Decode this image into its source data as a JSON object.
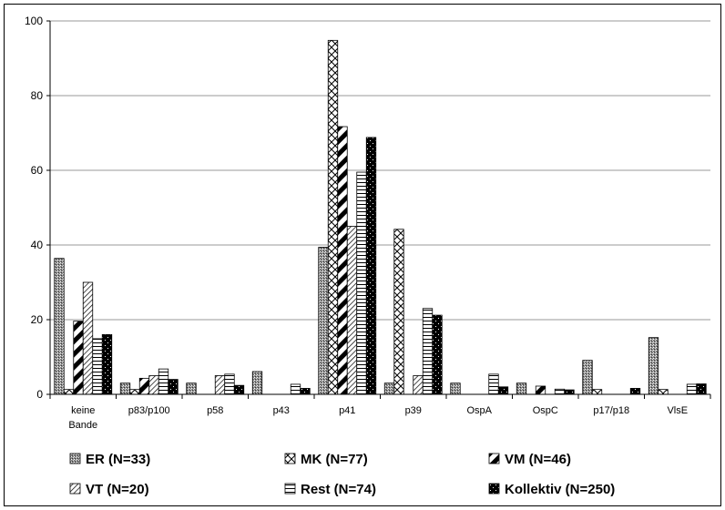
{
  "chart_data": {
    "type": "bar",
    "categories": [
      "keine Bande",
      "p83/p100",
      "p58",
      "p43",
      "p41",
      "p39",
      "OspA",
      "OspC",
      "p17/p18",
      "VlsE"
    ],
    "series": [
      {
        "name": "ER (N=33)",
        "values": [
          36.4,
          3.0,
          3.0,
          6.1,
          39.4,
          3.0,
          3.0,
          3.0,
          9.1,
          15.2
        ],
        "pattern": "er"
      },
      {
        "name": "MK (N=77)",
        "values": [
          1.3,
          1.3,
          0,
          0,
          94.8,
          44.2,
          0,
          0,
          1.3,
          1.3
        ],
        "pattern": "mk"
      },
      {
        "name": "VM (N=46)",
        "values": [
          19.6,
          4.3,
          0,
          0,
          71.7,
          0,
          0,
          2.2,
          0,
          0
        ],
        "pattern": "vm"
      },
      {
        "name": "VT (N=20)",
        "values": [
          30.0,
          5.0,
          5.0,
          0,
          45.0,
          5.0,
          0,
          0,
          0,
          0
        ],
        "pattern": "vt"
      },
      {
        "name": "Rest (N=74)",
        "values": [
          14.9,
          6.8,
          5.4,
          2.7,
          59.5,
          23.0,
          5.4,
          1.4,
          0,
          2.7
        ],
        "pattern": "rest"
      },
      {
        "name": "Kollektiv (N=250)",
        "values": [
          16.0,
          4.0,
          2.4,
          1.6,
          68.8,
          21.2,
          2.0,
          1.2,
          1.6,
          2.8
        ],
        "pattern": "koll"
      }
    ],
    "yticks": [
      "0",
      "20",
      "40",
      "60",
      "80",
      "100"
    ],
    "ylim": [
      0,
      100
    ],
    "title": "",
    "xlabel": "",
    "ylabel": "",
    "grid": true,
    "legend_position": "bottom"
  }
}
